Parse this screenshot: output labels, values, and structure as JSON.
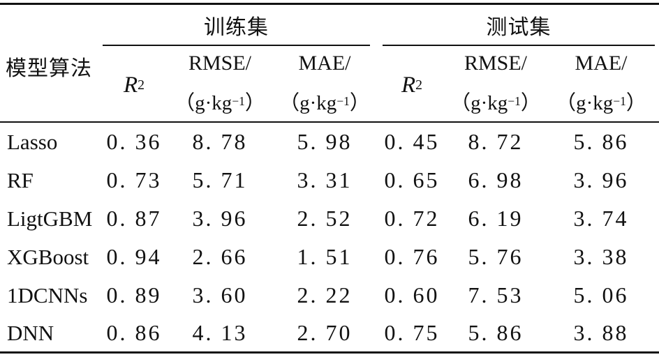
{
  "table": {
    "algo_header": "模型算法",
    "group_train": "训练集",
    "group_test": "测试集",
    "r2_base": "R",
    "r2_exp": "2",
    "rmse_label": "RMSE/",
    "mae_label": "MAE/",
    "unit_prefix": "（g·kg",
    "unit_exp": "−1",
    "unit_suffix": "）",
    "rows": [
      {
        "model": "Lasso",
        "train": [
          "0. 36",
          "8. 78",
          "5. 98"
        ],
        "test": [
          "0. 45",
          "8. 72",
          "5. 86"
        ]
      },
      {
        "model": "RF",
        "train": [
          "0. 73",
          "5. 71",
          "3. 31"
        ],
        "test": [
          "0. 65",
          "6. 98",
          "3. 96"
        ]
      },
      {
        "model": "LigtGBM",
        "train": [
          "0. 87",
          "3. 96",
          "2. 52"
        ],
        "test": [
          "0. 72",
          "6. 19",
          "3. 74"
        ]
      },
      {
        "model": "XGBoost",
        "train": [
          "0. 94",
          "2. 66",
          "1. 51"
        ],
        "test": [
          "0. 76",
          "5. 76",
          "3. 38"
        ]
      },
      {
        "model": "1DCNNs",
        "train": [
          "0. 89",
          "3. 60",
          "2. 22"
        ],
        "test": [
          "0. 60",
          "7. 53",
          "5. 06"
        ]
      },
      {
        "model": "DNN",
        "train": [
          "0. 86",
          "4. 13",
          "2. 70"
        ],
        "test": [
          "0. 75",
          "5. 86",
          "3. 88"
        ]
      }
    ]
  }
}
